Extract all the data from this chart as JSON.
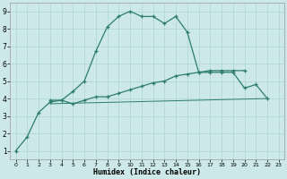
{
  "xlabel": "Humidex (Indice chaleur)",
  "background_color": "#cce8e8",
  "grid_color": "#aad4d4",
  "line_color": "#2d7d6e",
  "xlim": [
    -0.5,
    23.5
  ],
  "ylim": [
    0.5,
    9.5
  ],
  "xticks": [
    0,
    1,
    2,
    3,
    4,
    5,
    6,
    7,
    8,
    9,
    10,
    11,
    12,
    13,
    14,
    15,
    16,
    17,
    18,
    19,
    20,
    21,
    22,
    23
  ],
  "yticks": [
    1,
    2,
    3,
    4,
    5,
    6,
    7,
    8,
    9
  ],
  "curve1_x": [
    0,
    1,
    2,
    3,
    4,
    5,
    6,
    7,
    8,
    9,
    10,
    11,
    12,
    13,
    14,
    15,
    16,
    17,
    18,
    19,
    20,
    21,
    22
  ],
  "curve1_y": [
    1.0,
    1.8,
    3.2,
    3.8,
    3.9,
    4.4,
    5.0,
    6.7,
    8.1,
    8.7,
    9.0,
    8.7,
    8.7,
    8.3,
    8.7,
    7.8,
    5.5,
    5.5,
    5.5,
    5.5,
    4.6,
    4.8,
    4.0
  ],
  "curve2_x": [
    3,
    4,
    5,
    6,
    7,
    8,
    9,
    10,
    11,
    12,
    13,
    14,
    15,
    16,
    17,
    18,
    19,
    20
  ],
  "curve2_y": [
    3.9,
    3.9,
    3.7,
    3.9,
    4.1,
    4.1,
    4.3,
    4.5,
    4.7,
    4.9,
    5.0,
    5.3,
    5.4,
    5.5,
    5.6,
    5.6,
    5.6,
    5.6
  ],
  "curve3_x": [
    3,
    22
  ],
  "curve3_y": [
    3.7,
    4.0
  ]
}
